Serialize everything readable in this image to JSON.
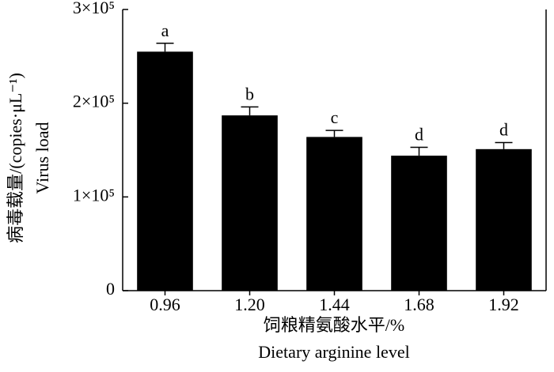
{
  "chart_data": {
    "type": "bar",
    "categories": [
      "0.96",
      "1.20",
      "1.44",
      "1.68",
      "1.92"
    ],
    "values": [
      255000,
      187000,
      164000,
      144000,
      151000
    ],
    "errors": [
      9000,
      9000,
      7000,
      9000,
      7000
    ],
    "annotations": [
      "a",
      "b",
      "c",
      "d",
      "d"
    ],
    "color": "#000000",
    "y_label": [
      "病毒载量/(copies·μL⁻¹)",
      "Virus load"
    ],
    "x_label": [
      "饲粮精氨酸水平/%",
      "Dietary arginine level"
    ],
    "ylim": [
      0,
      300000
    ],
    "yticks": [
      0,
      {
        "value": 100000,
        "label": "1×10⁵"
      },
      {
        "value": 200000,
        "label": "2×10⁵"
      },
      {
        "value": 300000,
        "label": "3×10⁵"
      }
    ],
    "grid": false
  }
}
